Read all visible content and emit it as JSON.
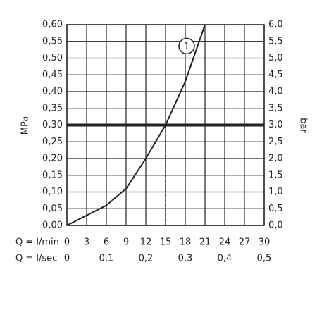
{
  "chart_data": {
    "type": "line",
    "ylabel": "MPa",
    "y2label": "bar",
    "xlabel": "Q = l/min",
    "x2label": "Q = l/sec",
    "x": [
      0,
      3,
      6,
      9,
      12,
      15,
      18,
      21
    ],
    "series": [
      {
        "name": "1",
        "color": "#222222",
        "values": [
          0,
          0.03,
          0.06,
          0.11,
          0.2,
          0.3,
          0.43,
          0.6
        ]
      }
    ],
    "xlim": [
      0,
      30
    ],
    "xticks": [
      0,
      3,
      6,
      9,
      12,
      15,
      18,
      21,
      24,
      27,
      30
    ],
    "x2lim": [
      0,
      0.5
    ],
    "x2ticks": [
      0,
      {
        "value": 0.1,
        "label": "0,1"
      },
      {
        "value": 0.2,
        "label": "0,2"
      },
      {
        "value": 0.3,
        "label": "0,3"
      },
      {
        "value": 0.4,
        "label": "0,4"
      },
      {
        "value": 0.5,
        "label": "0,5"
      }
    ],
    "ylim": [
      0,
      0.6
    ],
    "yticks": [
      {
        "value": 0,
        "label": "0,00"
      },
      {
        "value": 0.05,
        "label": "0,05"
      },
      {
        "value": 0.1,
        "label": "0,10"
      },
      {
        "value": 0.15,
        "label": "0,15"
      },
      {
        "value": 0.2,
        "label": "0,20"
      },
      {
        "value": 0.25,
        "label": "0,25"
      },
      {
        "value": 0.3,
        "label": "0,30"
      },
      {
        "value": 0.35,
        "label": "0,35"
      },
      {
        "value": 0.4,
        "label": "0,40"
      },
      {
        "value": 0.45,
        "label": "0,45"
      },
      {
        "value": 0.5,
        "label": "0,50"
      },
      {
        "value": 0.55,
        "label": "0,55"
      },
      {
        "value": 0.6,
        "label": "0,60"
      }
    ],
    "y2lim": [
      0,
      6
    ],
    "y2ticks": [
      {
        "value": 0,
        "label": "0,0"
      },
      {
        "value": 0.5,
        "label": "0,5"
      },
      {
        "value": 1,
        "label": "1,0"
      },
      {
        "value": 1.5,
        "label": "1,5"
      },
      {
        "value": 2,
        "label": "2,0"
      },
      {
        "value": 2.5,
        "label": "2,5"
      },
      {
        "value": 3,
        "label": "3,0"
      },
      {
        "value": 3.5,
        "label": "3,5"
      },
      {
        "value": 4,
        "label": "4,0"
      },
      {
        "value": 4.5,
        "label": "4,5"
      },
      {
        "value": 5,
        "label": "5,0"
      },
      {
        "value": 5.5,
        "label": "5,5"
      },
      {
        "value": 6,
        "label": "6,0"
      }
    ],
    "hline": 0.3,
    "vline": 15,
    "grid": true
  }
}
